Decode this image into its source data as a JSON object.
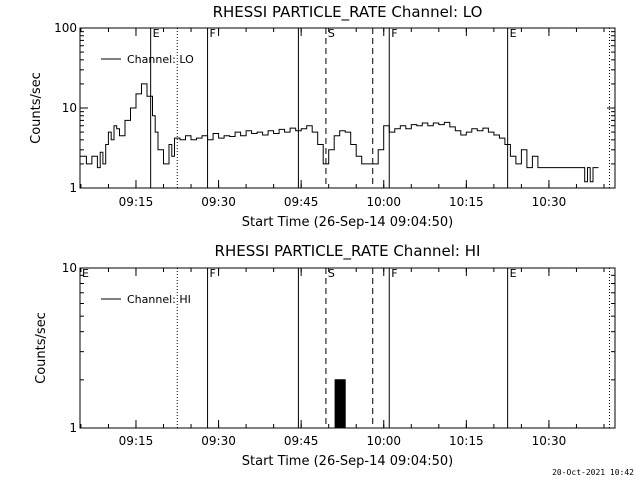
{
  "footer": {
    "timestamp": "20-Oct-2021 10:42"
  },
  "chart_data": [
    {
      "type": "line",
      "title": "RHESSI PARTICLE_RATE Channel: LO",
      "xlabel": "Start Time (26-Sep-14 09:04:50)",
      "ylabel": "Counts/sec",
      "yscale": "log",
      "ylim": [
        1,
        100
      ],
      "yticks": [
        1,
        10,
        100
      ],
      "xlim": [
        "09:04:50",
        "10:42:00"
      ],
      "xticks": [
        "09:15",
        "09:30",
        "09:45",
        "10:00",
        "10:15",
        "10:30"
      ],
      "legend": "top-left",
      "series": [
        {
          "name": "Channel: LO",
          "x": [
            "09:04:50",
            "09:06:00",
            "09:07:00",
            "09:08:00",
            "09:08:30",
            "09:09:00",
            "09:09:30",
            "09:10:00",
            "09:10:30",
            "09:11:00",
            "09:11:30",
            "09:12:00",
            "09:13:00",
            "09:14:00",
            "09:15:00",
            "09:16:00",
            "09:17:00",
            "09:18:00",
            "09:18:30",
            "09:19:00",
            "09:20:00",
            "09:21:00",
            "09:21:30",
            "09:22:00",
            "09:23:00",
            "09:24:00",
            "09:25:00",
            "09:26:00",
            "09:27:00",
            "09:28:00",
            "09:29:00",
            "09:30:00",
            "09:31:00",
            "09:32:00",
            "09:33:00",
            "09:34:00",
            "09:35:00",
            "09:36:00",
            "09:37:00",
            "09:38:00",
            "09:39:00",
            "09:40:00",
            "09:41:00",
            "09:42:00",
            "09:43:00",
            "09:44:00",
            "09:45:00",
            "09:46:00",
            "09:47:00",
            "09:48:00",
            "09:49:00",
            "09:50:00",
            "09:51:00",
            "09:52:00",
            "09:53:00",
            "09:54:00",
            "09:55:00",
            "09:56:00",
            "09:57:00",
            "09:58:00",
            "09:59:00",
            "10:00:00",
            "10:01:00",
            "10:02:00",
            "10:03:00",
            "10:04:00",
            "10:05:00",
            "10:06:00",
            "10:07:00",
            "10:08:00",
            "10:09:00",
            "10:10:00",
            "10:11:00",
            "10:12:00",
            "10:13:00",
            "10:14:00",
            "10:15:00",
            "10:16:00",
            "10:17:00",
            "10:18:00",
            "10:19:00",
            "10:20:00",
            "10:21:00",
            "10:22:00",
            "10:23:00",
            "10:24:00",
            "10:25:00",
            "10:26:00",
            "10:27:00",
            "10:28:00",
            "10:29:00",
            "10:30:00",
            "10:31:00",
            "10:32:00",
            "10:33:00",
            "10:34:00",
            "10:35:00",
            "10:36:00",
            "10:36:30",
            "10:37:00",
            "10:37:30",
            "10:38:00",
            "10:38:30",
            "10:39:00"
          ],
          "y": [
            2.5,
            2.0,
            2.5,
            1.8,
            2.8,
            2.0,
            3.5,
            5.0,
            4.0,
            6.0,
            5.5,
            4.5,
            7.0,
            10.0,
            15.0,
            20.0,
            14.0,
            8.0,
            5.0,
            3.0,
            2.0,
            3.5,
            2.5,
            4.2,
            4.0,
            4.5,
            4.0,
            4.2,
            4.5,
            4.0,
            4.8,
            4.2,
            4.5,
            4.4,
            5.0,
            4.5,
            5.2,
            4.8,
            5.0,
            4.6,
            5.2,
            4.8,
            5.4,
            5.0,
            5.6,
            5.2,
            5.5,
            6.0,
            5.0,
            3.5,
            2.0,
            3.0,
            4.5,
            5.2,
            5.0,
            3.5,
            2.5,
            2.0,
            2.0,
            2.0,
            3.0,
            6.0,
            5.0,
            5.5,
            6.0,
            5.5,
            6.2,
            6.0,
            6.5,
            6.0,
            6.5,
            6.2,
            6.6,
            5.8,
            5.2,
            4.6,
            5.0,
            5.5,
            5.2,
            5.6,
            5.0,
            4.6,
            4.2,
            3.5,
            2.5,
            2.0,
            3.0,
            1.8,
            2.5,
            1.8,
            1.8,
            1.8,
            1.8,
            1.8,
            1.8,
            1.8,
            1.8,
            1.8,
            1.2,
            1.8,
            1.2,
            1.8,
            1.8,
            1.8
          ]
        }
      ],
      "markers": [
        {
          "time": "09:17:40",
          "label": "E",
          "style": "solid"
        },
        {
          "time": "09:22:30",
          "label": "",
          "style": "dotted"
        },
        {
          "time": "09:28:00",
          "label": "F",
          "style": "solid"
        },
        {
          "time": "09:44:30",
          "label": "",
          "style": "solid"
        },
        {
          "time": "09:49:30",
          "label": "S",
          "style": "dashed"
        },
        {
          "time": "09:58:00",
          "label": "",
          "style": "dashed"
        },
        {
          "time": "10:01:00",
          "label": "F",
          "style": "solid"
        },
        {
          "time": "10:22:30",
          "label": "E",
          "style": "solid"
        },
        {
          "time": "10:41:00",
          "label": "",
          "style": "dotted"
        }
      ]
    },
    {
      "type": "line",
      "title": "RHESSI PARTICLE_RATE Channel: HI",
      "xlabel": "Start Time (26-Sep-14 09:04:50)",
      "ylabel": "Counts/sec",
      "yscale": "log",
      "ylim": [
        1,
        10
      ],
      "yticks": [
        1,
        10
      ],
      "xlim": [
        "09:04:50",
        "10:42:00"
      ],
      "xticks": [
        "09:15",
        "09:30",
        "09:45",
        "10:00",
        "10:15",
        "10:30"
      ],
      "legend": "top-left",
      "series": [
        {
          "name": "Channel: HI",
          "x": [
            "09:51:00",
            "09:51:10",
            "09:51:20",
            "09:51:30",
            "09:51:40",
            "09:51:50",
            "09:52:00",
            "09:52:10",
            "09:52:20",
            "09:52:30",
            "09:52:40",
            "09:52:50",
            "09:53:00"
          ],
          "y": [
            1.0,
            2.0,
            1.0,
            2.0,
            1.0,
            2.0,
            1.0,
            2.0,
            1.0,
            2.0,
            1.0,
            2.0,
            1.0
          ]
        }
      ],
      "markers": [
        {
          "time": "09:04:50",
          "label": "E",
          "style": "none"
        },
        {
          "time": "09:22:30",
          "label": "",
          "style": "dotted"
        },
        {
          "time": "09:28:00",
          "label": "F",
          "style": "solid"
        },
        {
          "time": "09:44:30",
          "label": "",
          "style": "solid"
        },
        {
          "time": "09:49:30",
          "label": "S",
          "style": "dashed"
        },
        {
          "time": "09:58:00",
          "label": "",
          "style": "dashed"
        },
        {
          "time": "10:01:00",
          "label": "F",
          "style": "solid"
        },
        {
          "time": "10:22:30",
          "label": "E",
          "style": "solid"
        },
        {
          "time": "10:41:00",
          "label": "",
          "style": "dotted"
        }
      ]
    }
  ]
}
